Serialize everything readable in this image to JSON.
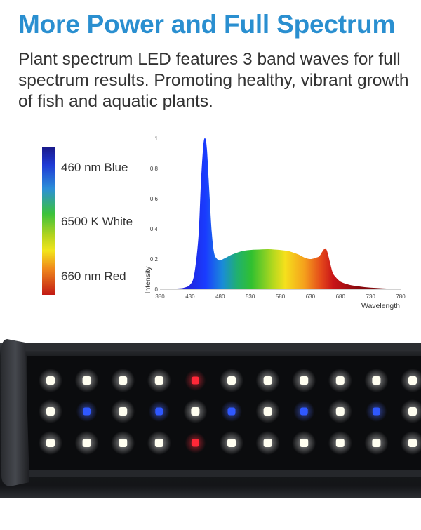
{
  "headline": "More Power and Full Spectrum",
  "description": "Plant spectrum LED features 3 band waves for full spectrum results. Promoting healthy, vibrant growth of fish and aquatic plants.",
  "colors": {
    "headline": "#2a8fd0",
    "body_text": "#333333"
  },
  "legend": {
    "blue": "460 nm Blue",
    "white": "6500 K White",
    "red": "660 nm Red"
  },
  "chart_data": {
    "type": "area",
    "xlabel": "Wavelength",
    "ylabel": "Intensity",
    "xlim": [
      380,
      780
    ],
    "ylim": [
      0,
      1
    ],
    "x_ticks": [
      380,
      430,
      480,
      530,
      580,
      630,
      680,
      730,
      780
    ],
    "y_ticks": [
      0,
      0.2,
      0.4,
      0.6,
      0.8,
      1
    ],
    "grid": false,
    "series": [
      {
        "x": [
          380,
          390,
          400,
          410,
          420,
          430,
          437,
          444,
          448,
          452,
          455,
          458,
          462,
          466,
          470,
          475,
          480,
          485,
          490,
          500,
          510,
          520,
          530,
          540,
          550,
          560,
          570,
          580,
          590,
          600,
          610,
          620,
          630,
          640,
          645,
          650,
          654,
          657,
          660,
          663,
          667,
          672,
          680,
          690,
          700,
          720,
          740,
          760,
          780
        ],
        "values": [
          0,
          0,
          0.002,
          0.005,
          0.01,
          0.03,
          0.1,
          0.35,
          0.7,
          0.95,
          1.0,
          0.93,
          0.65,
          0.38,
          0.24,
          0.2,
          0.19,
          0.2,
          0.21,
          0.23,
          0.245,
          0.255,
          0.26,
          0.262,
          0.264,
          0.265,
          0.263,
          0.26,
          0.255,
          0.245,
          0.23,
          0.21,
          0.2,
          0.21,
          0.22,
          0.25,
          0.27,
          0.26,
          0.22,
          0.17,
          0.11,
          0.08,
          0.05,
          0.035,
          0.025,
          0.014,
          0.008,
          0.004,
          0.001
        ]
      }
    ]
  },
  "fixture": {
    "led_layout": {
      "columns": 11,
      "rows": [
        [
          "white",
          "white",
          "white",
          "white",
          "red",
          "white",
          "white",
          "white",
          "white",
          "white",
          "white"
        ],
        [
          "white",
          "blue",
          "white",
          "blue",
          "white",
          "blue",
          "white",
          "blue",
          "white",
          "blue",
          "white"
        ],
        [
          "white",
          "white",
          "white",
          "white",
          "red",
          "white",
          "white",
          "white",
          "white",
          "white",
          "white"
        ]
      ]
    },
    "led_colors": {
      "white": "#fffef0",
      "blue": "#2f58ff",
      "red": "#ff2838"
    }
  }
}
